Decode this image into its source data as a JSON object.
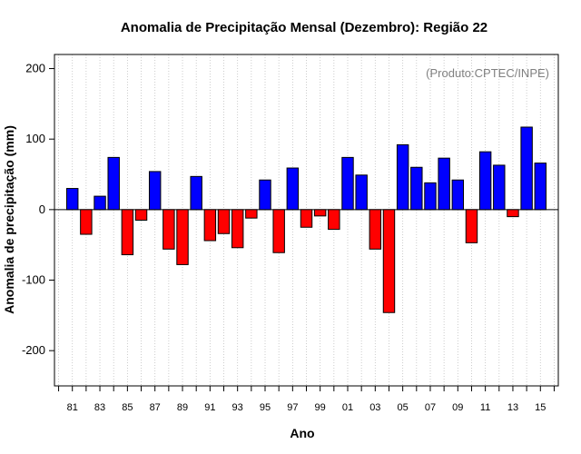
{
  "chart_data": {
    "type": "bar",
    "title": "Anomalia de Precipitação Mensal (Dezembro): Região 22",
    "xlabel": "Ano",
    "ylabel": "Anomalia de precipitação (mm)",
    "annotation": "(Produto:CPTEC/INPE)",
    "ylim": [
      -250,
      220
    ],
    "yticks": [
      -200,
      -100,
      0,
      100,
      200
    ],
    "xlim": [
      1979.7,
      2016.3
    ],
    "x_tick_labels": [
      {
        "year": 1981,
        "label": "81"
      },
      {
        "year": 1983,
        "label": "83"
      },
      {
        "year": 1985,
        "label": "85"
      },
      {
        "year": 1987,
        "label": "87"
      },
      {
        "year": 1989,
        "label": "89"
      },
      {
        "year": 1991,
        "label": "91"
      },
      {
        "year": 1993,
        "label": "93"
      },
      {
        "year": 1995,
        "label": "95"
      },
      {
        "year": 1997,
        "label": "97"
      },
      {
        "year": 1999,
        "label": "99"
      },
      {
        "year": 2001,
        "label": "01"
      },
      {
        "year": 2003,
        "label": "03"
      },
      {
        "year": 2005,
        "label": "05"
      },
      {
        "year": 2007,
        "label": "07"
      },
      {
        "year": 2009,
        "label": "09"
      },
      {
        "year": 2011,
        "label": "11"
      },
      {
        "year": 2013,
        "label": "13"
      },
      {
        "year": 2015,
        "label": "15"
      }
    ],
    "x": [
      1981,
      1982,
      1983,
      1984,
      1985,
      1986,
      1987,
      1988,
      1989,
      1990,
      1991,
      1992,
      1993,
      1994,
      1995,
      1996,
      1997,
      1998,
      1999,
      2000,
      2001,
      2002,
      2003,
      2004,
      2005,
      2006,
      2007,
      2008,
      2009,
      2010,
      2011,
      2012,
      2013,
      2014,
      2015
    ],
    "values": [
      30,
      -35,
      19,
      74,
      -64,
      -15,
      54,
      -56,
      -78,
      47,
      -44,
      -34,
      -54,
      -12,
      42,
      -61,
      59,
      -25,
      -9,
      -28,
      74,
      49,
      -56,
      -146,
      92,
      60,
      38,
      73,
      42,
      -47,
      82,
      63,
      -10,
      117,
      66
    ],
    "colors": {
      "positive": "#0000ff",
      "negative": "#ff0000",
      "grid": "#c0c0c0",
      "annotation": "#808080"
    }
  }
}
